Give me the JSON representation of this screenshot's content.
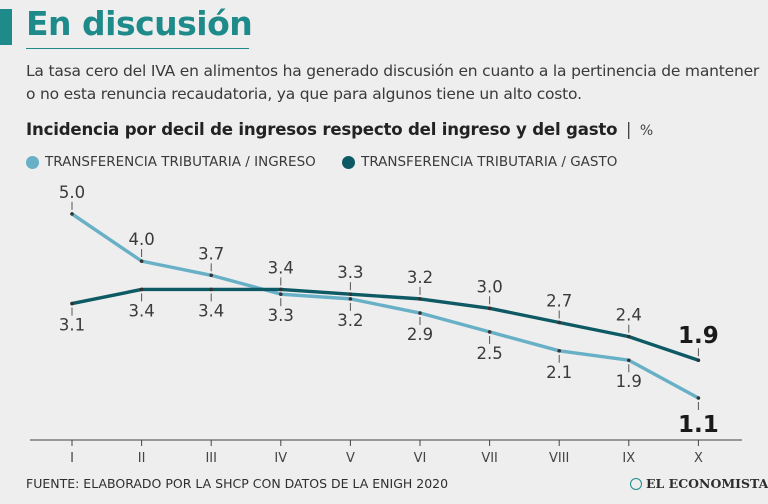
{
  "header": {
    "title": "En discusión",
    "subtitle": "La tasa cero del IVA en alimentos ha generado discusión en cuanto a la pertinencia de mantener o no esta renuncia recaudatoria, ya que para algunos tiene un alto costo."
  },
  "chart_data": {
    "type": "line",
    "title": "Incidencia por decil de ingresos respecto del ingreso y del gasto",
    "title_separator": "|",
    "unit": "%",
    "categories": [
      "I",
      "II",
      "III",
      "IV",
      "V",
      "VI",
      "VII",
      "VIII",
      "IX",
      "X"
    ],
    "series": [
      {
        "name": "TRANSFERENCIA TRIBUTARIA / INGRESO",
        "color": "#67b0c6",
        "values": [
          5.0,
          4.0,
          3.7,
          3.3,
          3.2,
          2.9,
          2.5,
          2.1,
          1.9,
          1.1
        ],
        "labels": [
          "5.0",
          "4.0",
          "3.7",
          "3.3",
          "3.2",
          "2.9",
          "2.5",
          "2.1",
          "1.9",
          "1.1"
        ]
      },
      {
        "name": "TRANSFERENCIA TRIBUTARIA / GASTO",
        "color": "#0d5a65",
        "values": [
          3.1,
          3.4,
          3.4,
          3.4,
          3.3,
          3.2,
          3.0,
          2.7,
          2.4,
          1.9
        ],
        "labels": [
          "3.1",
          "3.4",
          "3.4",
          "3.4",
          "3.3",
          "3.2",
          "3.0",
          "2.7",
          "2.4",
          "1.9"
        ]
      }
    ],
    "ylim": [
      0.5,
      5.5
    ],
    "grid": false
  },
  "footer": {
    "source": "FUENTE: ELABORADO POR LA SHCP CON DATOS DE LA ENIGH 2020",
    "brand": "EL ECONOMISTA"
  },
  "colors": {
    "accent": "#1e8a8a",
    "series_ingreso": "#67b0c6",
    "series_gasto": "#0d5a65",
    "background": "#eeeeee"
  }
}
